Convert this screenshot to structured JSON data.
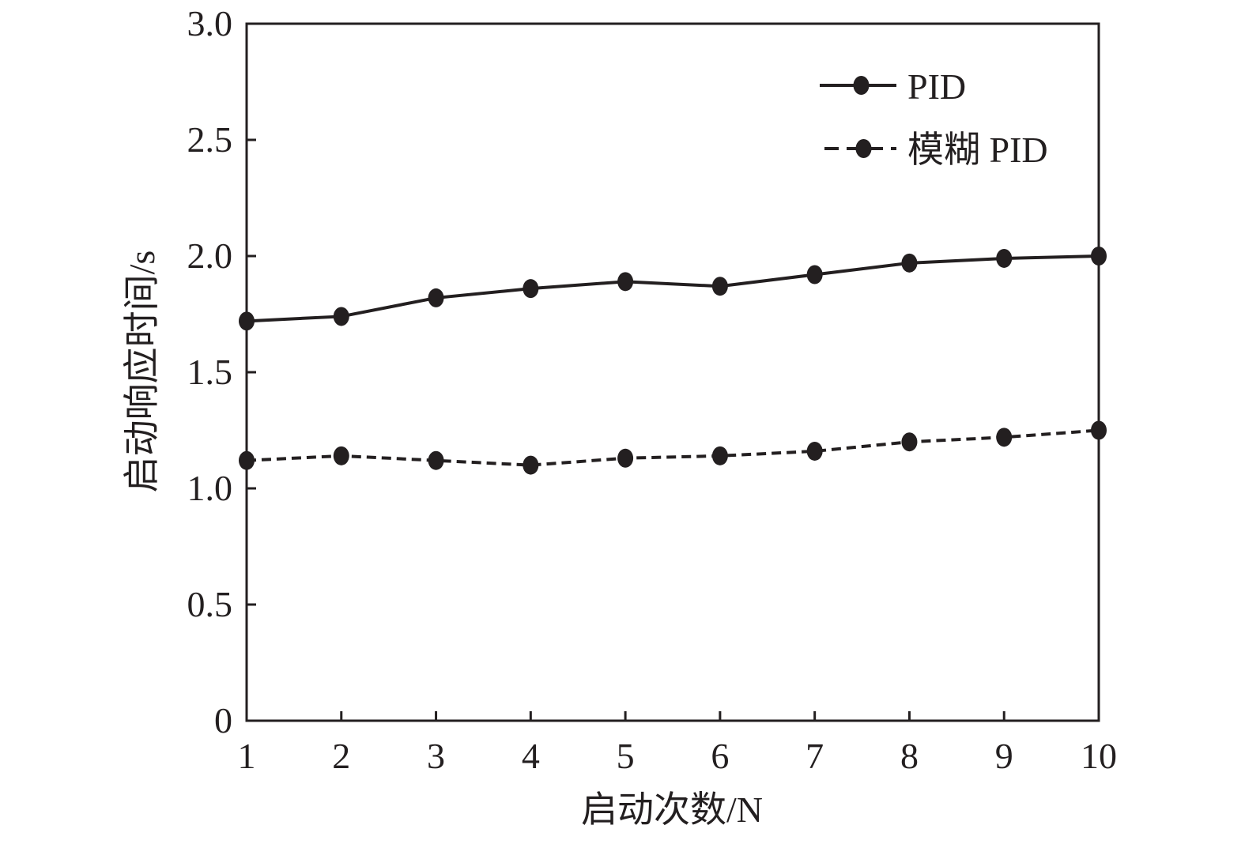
{
  "chart_data": {
    "type": "line",
    "x": [
      1,
      2,
      3,
      4,
      5,
      6,
      7,
      8,
      9,
      10
    ],
    "xlabel": "启动次数/N",
    "ylabel": "启动响应时间/s",
    "xlim": [
      1,
      10
    ],
    "ylim": [
      0,
      3.0
    ],
    "xticks": [
      "1",
      "2",
      "3",
      "4",
      "5",
      "6",
      "7",
      "8",
      "9",
      "10"
    ],
    "yticks": [
      "0",
      "0.5",
      "1.0",
      "1.5",
      "2.0",
      "2.5",
      "3.0"
    ],
    "grid": false,
    "legend_position": "top-right",
    "series": [
      {
        "name": "PID",
        "style": "solid",
        "color": "#231f20",
        "values": [
          1.72,
          1.74,
          1.82,
          1.86,
          1.89,
          1.87,
          1.92,
          1.97,
          1.99,
          2.0
        ]
      },
      {
        "name": "模糊 PID",
        "style": "dashed",
        "color": "#231f20",
        "values": [
          1.12,
          1.14,
          1.12,
          1.1,
          1.13,
          1.14,
          1.16,
          1.2,
          1.22,
          1.25
        ]
      }
    ]
  }
}
